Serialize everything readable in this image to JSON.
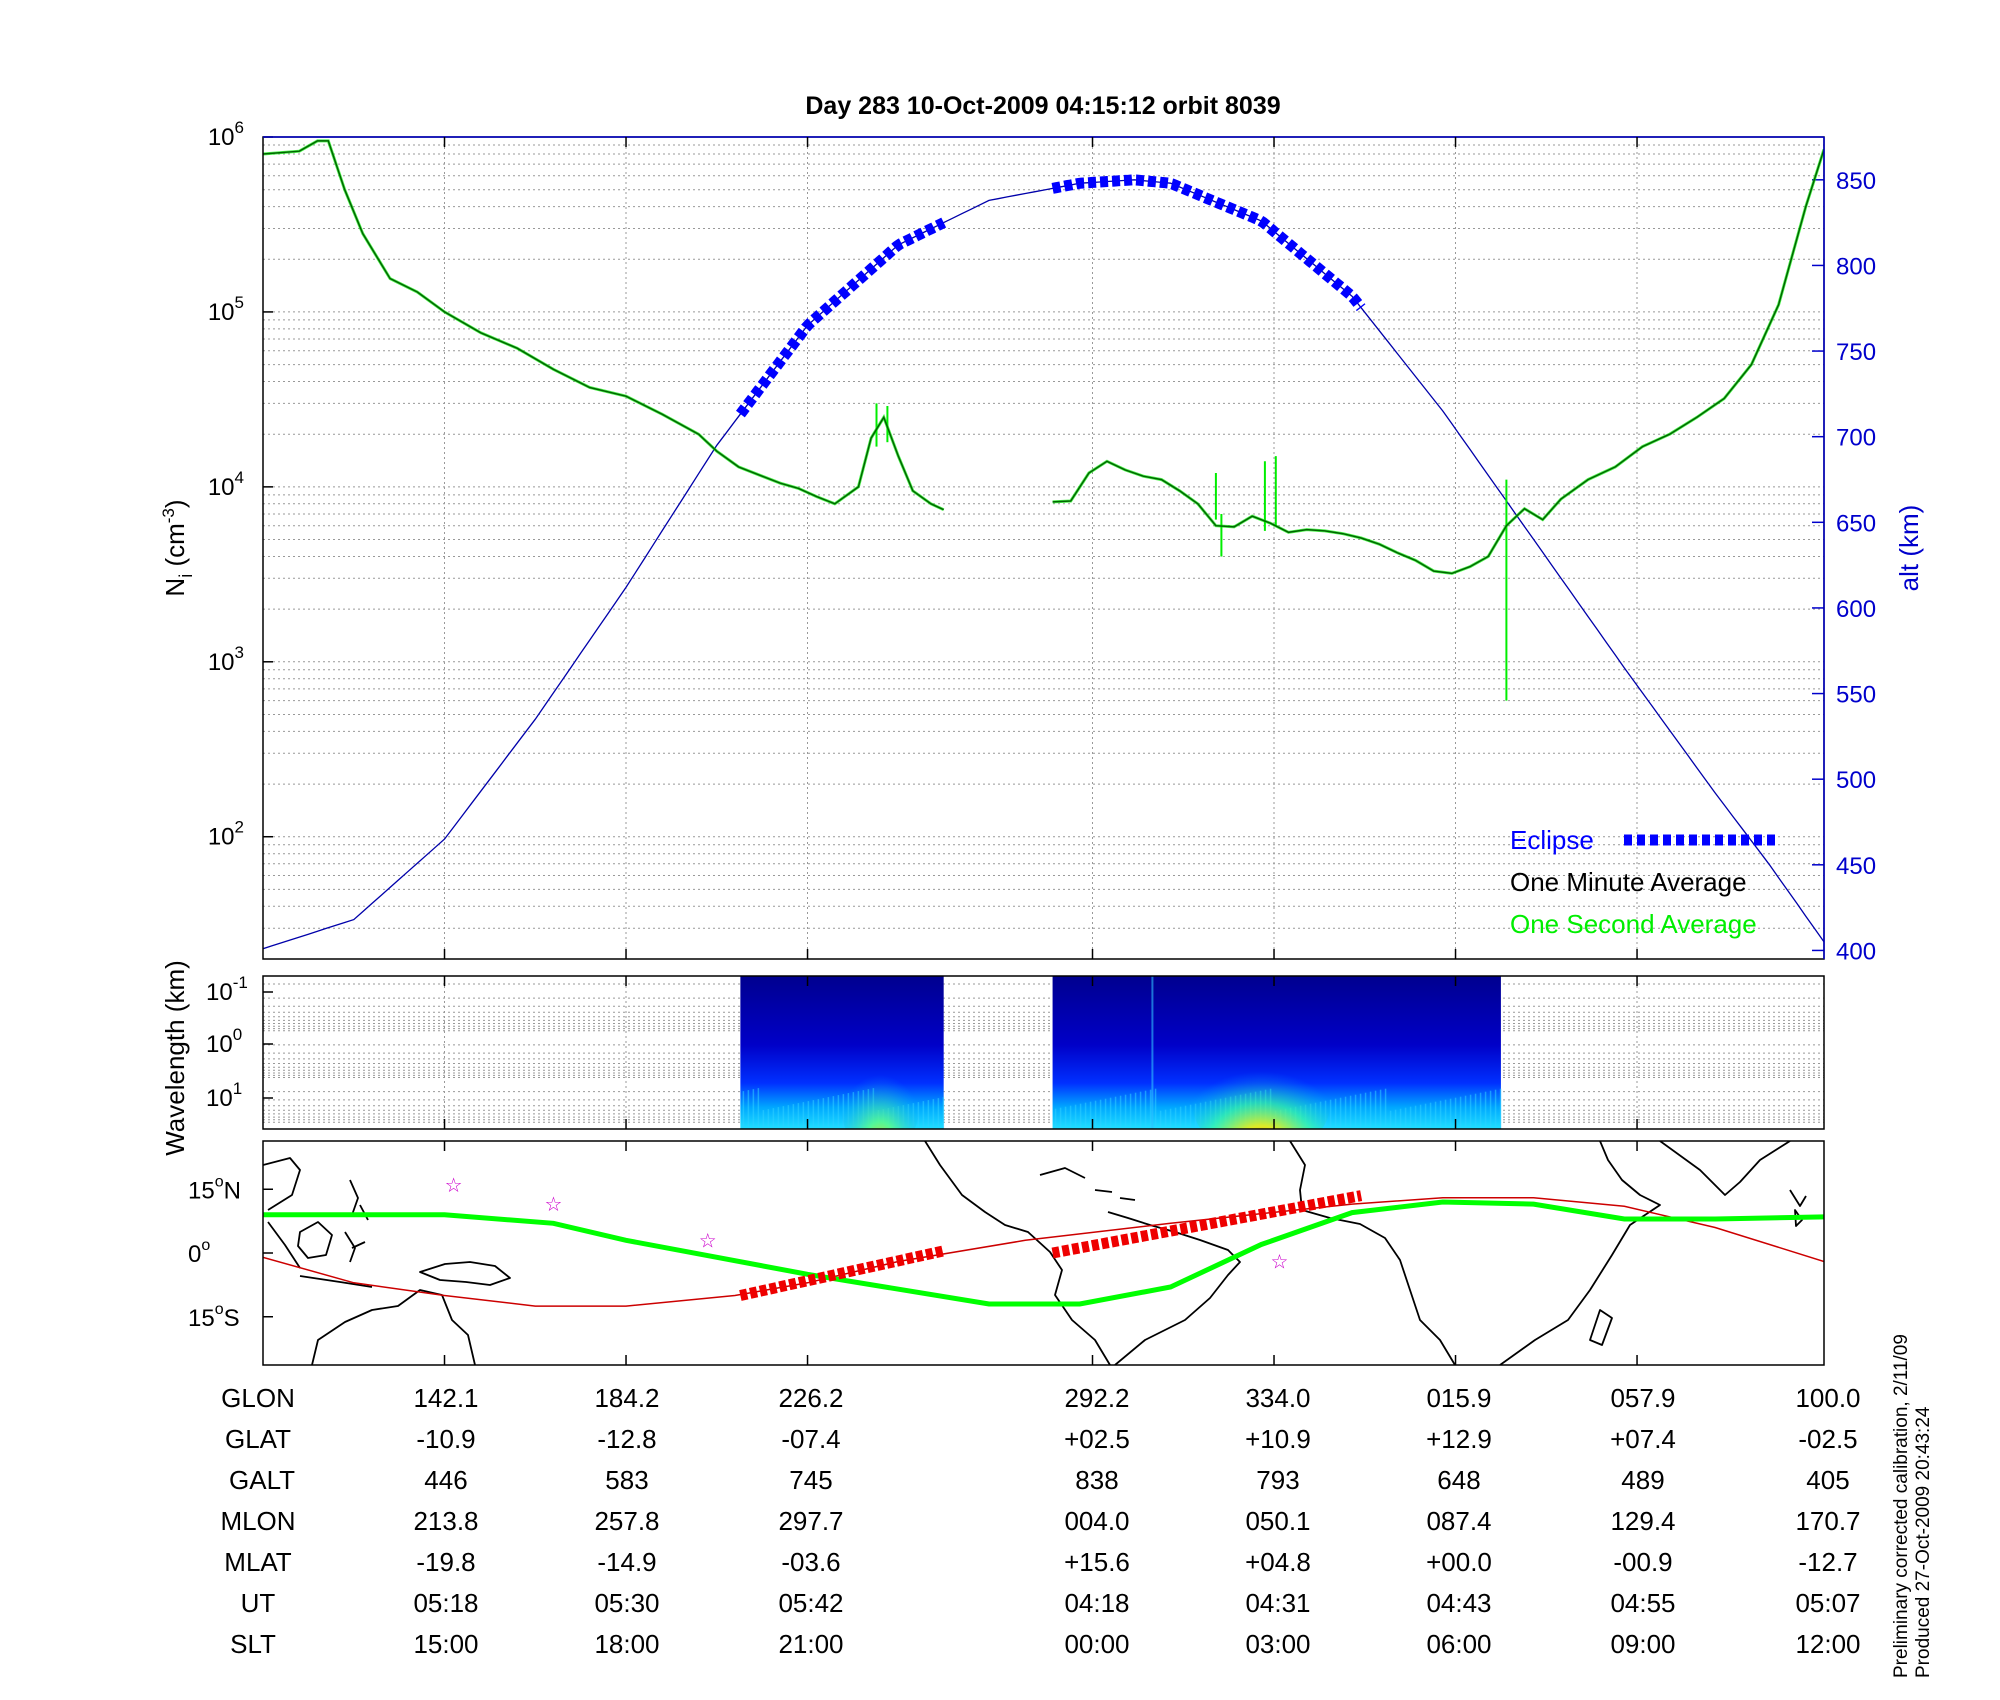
{
  "title": "Day 283  10-Oct-2009 04:15:12   orbit 8039",
  "colors": {
    "eclipse": "#0000ff",
    "minute": "#006400",
    "second": "#00ee00",
    "alt": "#0000aa",
    "dipeq": "#cc0000",
    "track": "#00ff00",
    "star": "#cc00cc"
  },
  "chart_data": [
    {
      "type": "line",
      "panel": "density",
      "ylabel": "N_i (cm^-3)",
      "ylabel_main": "N",
      "ylabel_sub": "i",
      "ylabel_unit": " (cm",
      "ylabel_sup": "-3",
      "ylabel_close": ")",
      "yscale": "log",
      "ylim": [
        20,
        1000000
      ],
      "yticks": [
        {
          "base": "10",
          "exp": "2",
          "value": 100
        },
        {
          "base": "10",
          "exp": "3",
          "value": 1000
        },
        {
          "base": "10",
          "exp": "4",
          "value": 10000
        },
        {
          "base": "10",
          "exp": "5",
          "value": 100000
        },
        {
          "base": "10",
          "exp": "6",
          "value": 1000000
        }
      ],
      "y2label": "alt (km)",
      "y2lim": [
        395,
        875
      ],
      "y2ticks": [
        "400",
        "450",
        "500",
        "550",
        "600",
        "650",
        "700",
        "750",
        "800",
        "850"
      ],
      "xlim": [
        0,
        8.6
      ],
      "xgrid": [
        1,
        2,
        3,
        4.57,
        5.57,
        6.57,
        7.57
      ],
      "grid": true,
      "legend": {
        "position": "bottom-right",
        "eclipse": "Eclipse",
        "minute": "One Minute Average",
        "second": "One Second Average"
      },
      "series": [
        {
          "name": "One Minute Average",
          "segments": [
            [
              [
                0,
                800000
              ],
              [
                0.2,
                830000
              ],
              [
                0.3,
                950000
              ],
              [
                0.36,
                950000
              ],
              [
                0.45,
                500000
              ],
              [
                0.55,
                280000
              ],
              [
                0.7,
                155000
              ],
              [
                0.85,
                130000
              ],
              [
                1.0,
                100000
              ],
              [
                1.2,
                76000
              ],
              [
                1.4,
                62000
              ],
              [
                1.6,
                47000
              ],
              [
                1.8,
                37000
              ],
              [
                2.0,
                33000
              ],
              [
                2.2,
                26000
              ],
              [
                2.4,
                20000
              ],
              [
                2.5,
                16000
              ],
              [
                2.62,
                13000
              ],
              [
                2.75,
                11500
              ],
              [
                2.85,
                10500
              ],
              [
                2.95,
                9800
              ],
              [
                3.05,
                8800
              ],
              [
                3.15,
                8000
              ],
              [
                3.28,
                10000
              ],
              [
                3.35,
                19000
              ],
              [
                3.42,
                25000
              ],
              [
                3.5,
                15000
              ],
              [
                3.58,
                9500
              ],
              [
                3.68,
                8000
              ],
              [
                3.75,
                7400
              ]
            ],
            [
              [
                4.35,
                8200
              ],
              [
                4.45,
                8300
              ],
              [
                4.55,
                12000
              ],
              [
                4.65,
                14000
              ],
              [
                4.75,
                12500
              ],
              [
                4.85,
                11500
              ],
              [
                4.95,
                11000
              ],
              [
                5.05,
                9500
              ],
              [
                5.15,
                8000
              ],
              [
                5.25,
                6000
              ],
              [
                5.35,
                5900
              ],
              [
                5.45,
                6800
              ],
              [
                5.55,
                6200
              ],
              [
                5.65,
                5500
              ],
              [
                5.75,
                5700
              ],
              [
                5.85,
                5600
              ],
              [
                5.95,
                5400
              ],
              [
                6.05,
                5100
              ],
              [
                6.15,
                4700
              ],
              [
                6.25,
                4200
              ],
              [
                6.35,
                3800
              ],
              [
                6.45,
                3300
              ],
              [
                6.55,
                3200
              ],
              [
                6.65,
                3500
              ],
              [
                6.75,
                4000
              ],
              [
                6.85,
                6000
              ],
              [
                6.95,
                7500
              ],
              [
                7.05,
                6500
              ],
              [
                7.15,
                8500
              ],
              [
                7.3,
                11000
              ],
              [
                7.45,
                13000
              ],
              [
                7.6,
                17000
              ],
              [
                7.75,
                20000
              ],
              [
                7.9,
                25000
              ],
              [
                8.05,
                32000
              ],
              [
                8.2,
                50000
              ],
              [
                8.35,
                110000
              ],
              [
                8.5,
                400000
              ],
              [
                8.6,
                850000
              ]
            ]
          ]
        },
        {
          "name": "One Second Average",
          "spikes": [
            {
              "x": 3.38,
              "y1": 17000,
              "y2": 30000
            },
            {
              "x": 3.44,
              "y1": 18000,
              "y2": 29000
            },
            {
              "x": 5.25,
              "y1": 6500,
              "y2": 12000
            },
            {
              "x": 5.28,
              "y1": 4000,
              "y2": 7000
            },
            {
              "x": 5.52,
              "y1": 5600,
              "y2": 14000
            },
            {
              "x": 5.58,
              "y1": 6000,
              "y2": 15000
            },
            {
              "x": 6.85,
              "y1": 600,
              "y2": 11000
            }
          ]
        },
        {
          "name": "alt",
          "points": [
            [
              0,
              401
            ],
            [
              0.5,
              418
            ],
            [
              1.0,
              465
            ],
            [
              1.5,
              535
            ],
            [
              2.0,
              612
            ],
            [
              2.5,
              695
            ],
            [
              3.0,
              765
            ],
            [
              3.5,
              812
            ],
            [
              4.0,
              838
            ],
            [
              4.5,
              848
            ],
            [
              4.8,
              850
            ],
            [
              5.0,
              848
            ],
            [
              5.5,
              826
            ],
            [
              6.0,
              782
            ],
            [
              6.5,
              715
            ],
            [
              7.0,
              640
            ],
            [
              7.5,
              565
            ],
            [
              8.0,
              492
            ],
            [
              8.3,
              450
            ],
            [
              8.6,
              405
            ]
          ]
        },
        {
          "name": "Eclipse",
          "ranges": [
            [
              2.63,
              3.75
            ],
            [
              4.35,
              6.05
            ]
          ]
        }
      ]
    },
    {
      "type": "heatmap",
      "panel": "spectrogram",
      "ylabel": "Wavelength (km)",
      "yscale": "log",
      "yticks": [
        {
          "base": "10",
          "exp": "-1"
        },
        {
          "base": "10",
          "exp": "0"
        },
        {
          "base": "10",
          "exp": "1"
        }
      ],
      "blocks": [
        [
          2.63,
          3.75
        ],
        [
          4.35,
          6.82
        ]
      ]
    },
    {
      "type": "map",
      "panel": "track",
      "yticks": [
        {
          "deg": 15,
          "label": "15",
          "hemi": "N"
        },
        {
          "deg": 0,
          "label": "0",
          "hemi": ""
        },
        {
          "deg": -15,
          "label": "15",
          "hemi": "S"
        }
      ],
      "track": [
        [
          0,
          9
        ],
        [
          1,
          9
        ],
        [
          1.6,
          7
        ],
        [
          2,
          3
        ],
        [
          3,
          -5
        ],
        [
          4,
          -12
        ],
        [
          4.5,
          -12
        ],
        [
          5,
          -8
        ],
        [
          5.5,
          2
        ],
        [
          6,
          9.5
        ],
        [
          6.5,
          12
        ],
        [
          7,
          11.5
        ],
        [
          7.5,
          8
        ],
        [
          8,
          8
        ],
        [
          8.6,
          8.5
        ]
      ],
      "dip_equator": [
        [
          0,
          -1
        ],
        [
          0.5,
          -7
        ],
        [
          1,
          -10
        ],
        [
          1.5,
          -12.5
        ],
        [
          2,
          -12.5
        ],
        [
          2.6,
          -10
        ],
        [
          3,
          -7
        ],
        [
          3.5,
          -2
        ],
        [
          4.2,
          3
        ],
        [
          5,
          7
        ],
        [
          6,
          11.5
        ],
        [
          6.5,
          13
        ],
        [
          7,
          13
        ],
        [
          7.5,
          11
        ],
        [
          8,
          6
        ],
        [
          8.6,
          -2
        ]
      ],
      "eclipse_ranges": [
        [
          2.63,
          3.75
        ],
        [
          4.35,
          6.05
        ]
      ]
    }
  ],
  "table": {
    "labels": [
      "GLON",
      "GLAT",
      "GALT",
      "MLON",
      "MLAT",
      "UT",
      "SLT"
    ],
    "columns": [
      [
        "142.1",
        "-10.9",
        "446",
        "213.8",
        "-19.8",
        "05:18",
        "15:00"
      ],
      [
        "184.2",
        "-12.8",
        "583",
        "257.8",
        "-14.9",
        "05:30",
        "18:00"
      ],
      [
        "226.2",
        "-07.4",
        "745",
        "297.7",
        "-03.6",
        "05:42",
        "21:00"
      ],
      [
        "292.2",
        "+02.5",
        "838",
        "004.0",
        "+15.6",
        "04:18",
        "00:00"
      ],
      [
        "334.0",
        "+10.9",
        "793",
        "050.1",
        "+04.8",
        "04:31",
        "03:00"
      ],
      [
        "015.9",
        "+12.9",
        "648",
        "087.4",
        "+00.0",
        "04:43",
        "06:00"
      ],
      [
        "057.9",
        "+07.4",
        "489",
        "129.4",
        "-00.9",
        "04:55",
        "09:00"
      ],
      [
        "100.0",
        "-02.5",
        "405",
        "170.7",
        "-12.7",
        "05:07",
        "12:00"
      ]
    ]
  },
  "footer": {
    "line1": "Preliminary corrected calibration, 2/11/09",
    "line2": "Produced 27-Oct-2009 20:43:24"
  }
}
